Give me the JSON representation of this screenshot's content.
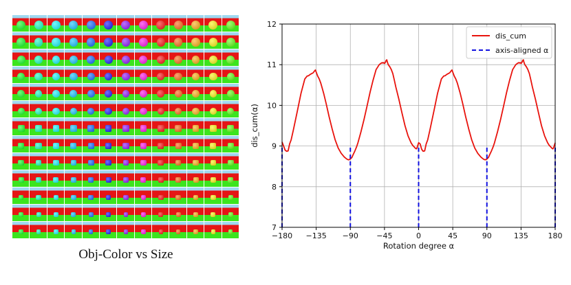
{
  "figure": {
    "caption": "Obj-Color vs Size",
    "thumbnail_grid": {
      "rows": 13,
      "cols": 13
    }
  },
  "chart_data": {
    "type": "line",
    "xlabel": "Rotation degree α",
    "ylabel": "dis_cum(α)",
    "xlim": [
      -180,
      180
    ],
    "ylim": [
      7,
      12
    ],
    "xticks": [
      -180,
      -135,
      -90,
      -45,
      0,
      45,
      90,
      135,
      180
    ],
    "xtick_labels": [
      "−180",
      "−135",
      "−90",
      "−45",
      "0",
      "45",
      "90",
      "135",
      "180"
    ],
    "yticks": [
      7,
      8,
      9,
      10,
      11,
      12
    ],
    "grid": true,
    "legend_position": "top-right",
    "series": [
      {
        "name": "dis_cum",
        "color": "#e8120c",
        "style": "solid",
        "x": [
          -180,
          -178,
          -176,
          -174,
          -172,
          -170,
          -168,
          -165,
          -160,
          -155,
          -150,
          -147,
          -145,
          -143,
          -141,
          -139,
          -137,
          -136,
          -135,
          -133,
          -131,
          -129,
          -127,
          -125,
          -122,
          -118,
          -114,
          -110,
          -106,
          -102,
          -98,
          -96,
          -94,
          -92,
          -90,
          -88,
          -86,
          -84,
          -82,
          -80,
          -76,
          -72,
          -68,
          -64,
          -60,
          -56,
          -52,
          -50,
          -48,
          -47,
          -46,
          -45,
          -44,
          -43,
          -42,
          -41,
          -40,
          -38,
          -36,
          -34,
          -32,
          -30,
          -26,
          -22,
          -18,
          -14,
          -10,
          -8,
          -6,
          -4,
          -3,
          -2,
          -1,
          0,
          1,
          2,
          4,
          6,
          8,
          10,
          12,
          15,
          20,
          25,
          30,
          33,
          35,
          37,
          39,
          41,
          43,
          44,
          45,
          47,
          49,
          51,
          53,
          55,
          58,
          62,
          66,
          70,
          74,
          78,
          82,
          84,
          86,
          88,
          90,
          92,
          94,
          96,
          98,
          100,
          104,
          108,
          112,
          116,
          120,
          124,
          128,
          130,
          132,
          133,
          134,
          135,
          136,
          137,
          138,
          139,
          140,
          142,
          144,
          146,
          148,
          150,
          154,
          158,
          162,
          166,
          170,
          172,
          174,
          176,
          177,
          178,
          179,
          180
        ],
        "y": [
          9.1,
          9.0,
          8.9,
          8.87,
          8.88,
          9.05,
          9.15,
          9.4,
          9.85,
          10.3,
          10.65,
          10.72,
          10.73,
          10.76,
          10.78,
          10.8,
          10.85,
          10.87,
          10.82,
          10.72,
          10.65,
          10.55,
          10.42,
          10.28,
          10.05,
          9.72,
          9.42,
          9.15,
          8.95,
          8.82,
          8.73,
          8.7,
          8.67,
          8.66,
          8.68,
          8.72,
          8.8,
          8.88,
          8.97,
          9.08,
          9.35,
          9.65,
          9.98,
          10.32,
          10.62,
          10.88,
          11.0,
          11.03,
          11.05,
          11.04,
          11.05,
          11.03,
          11.05,
          11.1,
          11.12,
          11.05,
          11.0,
          10.95,
          10.88,
          10.78,
          10.62,
          10.45,
          10.15,
          9.82,
          9.5,
          9.25,
          9.08,
          9.02,
          8.98,
          8.94,
          8.93,
          8.96,
          9.02,
          9.08,
          9.07,
          9.05,
          8.92,
          8.87,
          8.88,
          9.05,
          9.15,
          9.4,
          9.85,
          10.3,
          10.65,
          10.72,
          10.73,
          10.76,
          10.78,
          10.8,
          10.85,
          10.87,
          10.82,
          10.72,
          10.65,
          10.55,
          10.42,
          10.28,
          10.05,
          9.72,
          9.42,
          9.15,
          8.95,
          8.82,
          8.73,
          8.7,
          8.67,
          8.66,
          8.68,
          8.72,
          8.8,
          8.88,
          8.97,
          9.08,
          9.35,
          9.65,
          9.98,
          10.32,
          10.62,
          10.88,
          11.0,
          11.03,
          11.05,
          11.04,
          11.05,
          11.03,
          11.05,
          11.1,
          11.12,
          11.05,
          11.0,
          10.95,
          10.88,
          10.78,
          10.62,
          10.45,
          10.15,
          9.82,
          9.5,
          9.25,
          9.08,
          9.02,
          8.98,
          8.94,
          8.93,
          8.96,
          9.02,
          9.08
        ]
      },
      {
        "name": "axis-aligned α",
        "color": "#1010e0",
        "style": "dashed",
        "type": "vertical-markers",
        "x": [
          -180,
          -90,
          0,
          90,
          180
        ]
      }
    ],
    "legend": [
      {
        "label": "dis_cum",
        "color": "#e8120c",
        "style": "solid"
      },
      {
        "label": "axis-aligned α",
        "color": "#1010e0",
        "style": "dashed"
      }
    ]
  }
}
